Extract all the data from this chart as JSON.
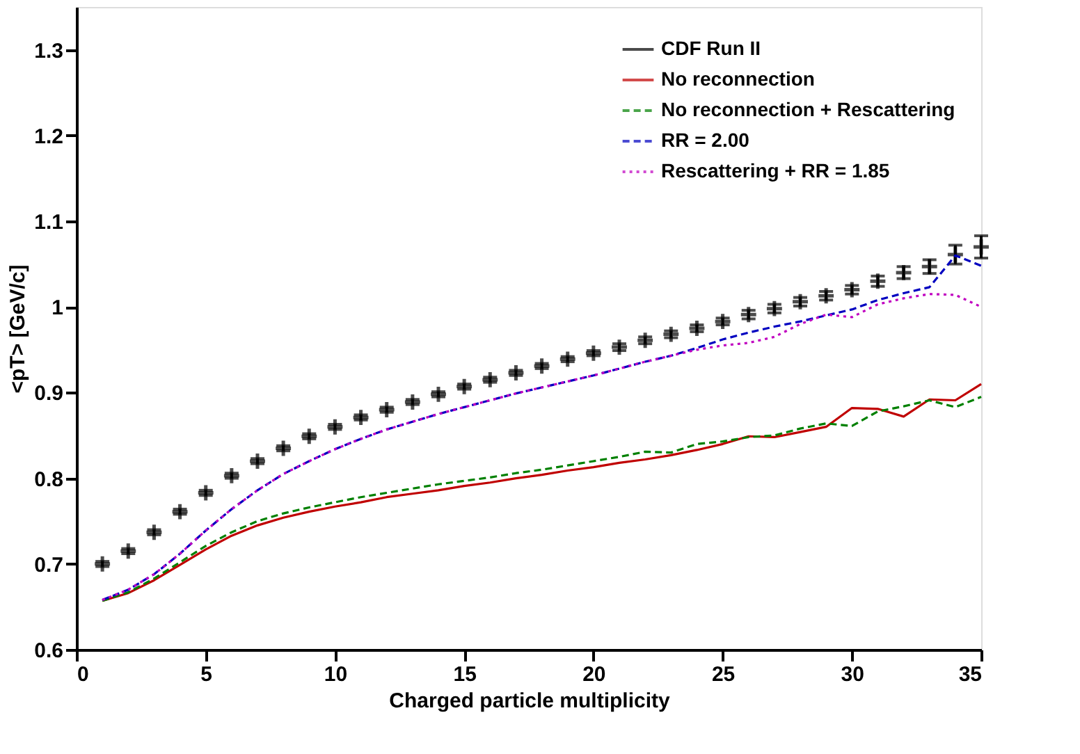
{
  "chart_data": {
    "type": "line",
    "xlabel": "Charged particle multiplicity",
    "ylabel": "<pT> [GeV/c]",
    "x": [
      1,
      2,
      3,
      4,
      5,
      6,
      7,
      8,
      9,
      10,
      11,
      12,
      13,
      14,
      15,
      16,
      17,
      18,
      19,
      20,
      21,
      22,
      23,
      24,
      25,
      26,
      27,
      28,
      29,
      30,
      31,
      32,
      33,
      34,
      35
    ],
    "xlim": [
      0,
      35
    ],
    "xticks": [
      0,
      5,
      10,
      15,
      20,
      25,
      30,
      35
    ],
    "ylim": [
      0.6,
      1.35
    ],
    "yticks": [
      0.6,
      0.7,
      0.8,
      0.9,
      1,
      1.1,
      1.2,
      1.3
    ],
    "grid": false,
    "legend": "top right",
    "series": [
      {
        "name": "CDF Run II",
        "type": "scatter",
        "marker": "cross",
        "color": "#000000",
        "values": [
          0.7,
          0.715,
          0.737,
          0.761,
          0.783,
          0.803,
          0.82,
          0.835,
          0.849,
          0.86,
          0.871,
          0.88,
          0.889,
          0.898,
          0.907,
          0.915,
          0.923,
          0.931,
          0.939,
          0.946,
          0.953,
          0.961,
          0.968,
          0.975,
          0.983,
          0.991,
          0.998,
          1.006,
          1.013,
          1.02,
          1.03,
          1.04,
          1.047,
          1.061,
          1.07
        ],
        "errors": [
          0.003,
          0.003,
          0.003,
          0.003,
          0.003,
          0.003,
          0.003,
          0.003,
          0.003,
          0.003,
          0.003,
          0.003,
          0.003,
          0.003,
          0.003,
          0.003,
          0.003,
          0.003,
          0.003,
          0.003,
          0.004,
          0.004,
          0.004,
          0.004,
          0.004,
          0.005,
          0.005,
          0.005,
          0.005,
          0.005,
          0.006,
          0.007,
          0.008,
          0.011,
          0.013
        ]
      },
      {
        "name": "No reconnection",
        "line_style": "solid",
        "color": "#c00000",
        "values": [
          0.657,
          0.666,
          0.681,
          0.699,
          0.717,
          0.733,
          0.745,
          0.754,
          0.761,
          0.767,
          0.772,
          0.778,
          0.782,
          0.786,
          0.791,
          0.795,
          0.8,
          0.804,
          0.809,
          0.813,
          0.818,
          0.822,
          0.827,
          0.833,
          0.84,
          0.849,
          0.848,
          0.854,
          0.86,
          0.882,
          0.881,
          0.872,
          0.892,
          0.891,
          0.91
        ]
      },
      {
        "name": "No reconnection + Rescattering",
        "line_style": "dashed",
        "color": "#008000",
        "values": [
          0.657,
          0.667,
          0.683,
          0.702,
          0.721,
          0.737,
          0.75,
          0.759,
          0.766,
          0.772,
          0.778,
          0.783,
          0.788,
          0.793,
          0.797,
          0.801,
          0.806,
          0.81,
          0.815,
          0.82,
          0.825,
          0.831,
          0.83,
          0.84,
          0.843,
          0.848,
          0.85,
          0.858,
          0.864,
          0.861,
          0.878,
          0.884,
          0.891,
          0.883,
          0.895
        ]
      },
      {
        "name": "RR = 2.00",
        "line_style": "dashed",
        "color": "#0000c0",
        "values": [
          0.658,
          0.67,
          0.688,
          0.712,
          0.739,
          0.764,
          0.786,
          0.805,
          0.82,
          0.834,
          0.846,
          0.857,
          0.866,
          0.875,
          0.883,
          0.891,
          0.899,
          0.906,
          0.913,
          0.92,
          0.928,
          0.936,
          0.943,
          0.952,
          0.962,
          0.97,
          0.977,
          0.983,
          0.99,
          0.997,
          1.008,
          1.016,
          1.023,
          1.06,
          1.048
        ]
      },
      {
        "name": "Rescattering + RR = 1.85",
        "line_style": "dotted",
        "color": "#c000c0",
        "values": [
          0.658,
          0.67,
          0.688,
          0.712,
          0.739,
          0.764,
          0.786,
          0.805,
          0.82,
          0.834,
          0.846,
          0.857,
          0.866,
          0.875,
          0.883,
          0.891,
          0.899,
          0.906,
          0.913,
          0.92,
          0.928,
          0.936,
          0.943,
          0.95,
          0.955,
          0.958,
          0.965,
          0.98,
          0.991,
          0.988,
          1.003,
          1.01,
          1.015,
          1.014,
          1.0
        ]
      }
    ]
  }
}
